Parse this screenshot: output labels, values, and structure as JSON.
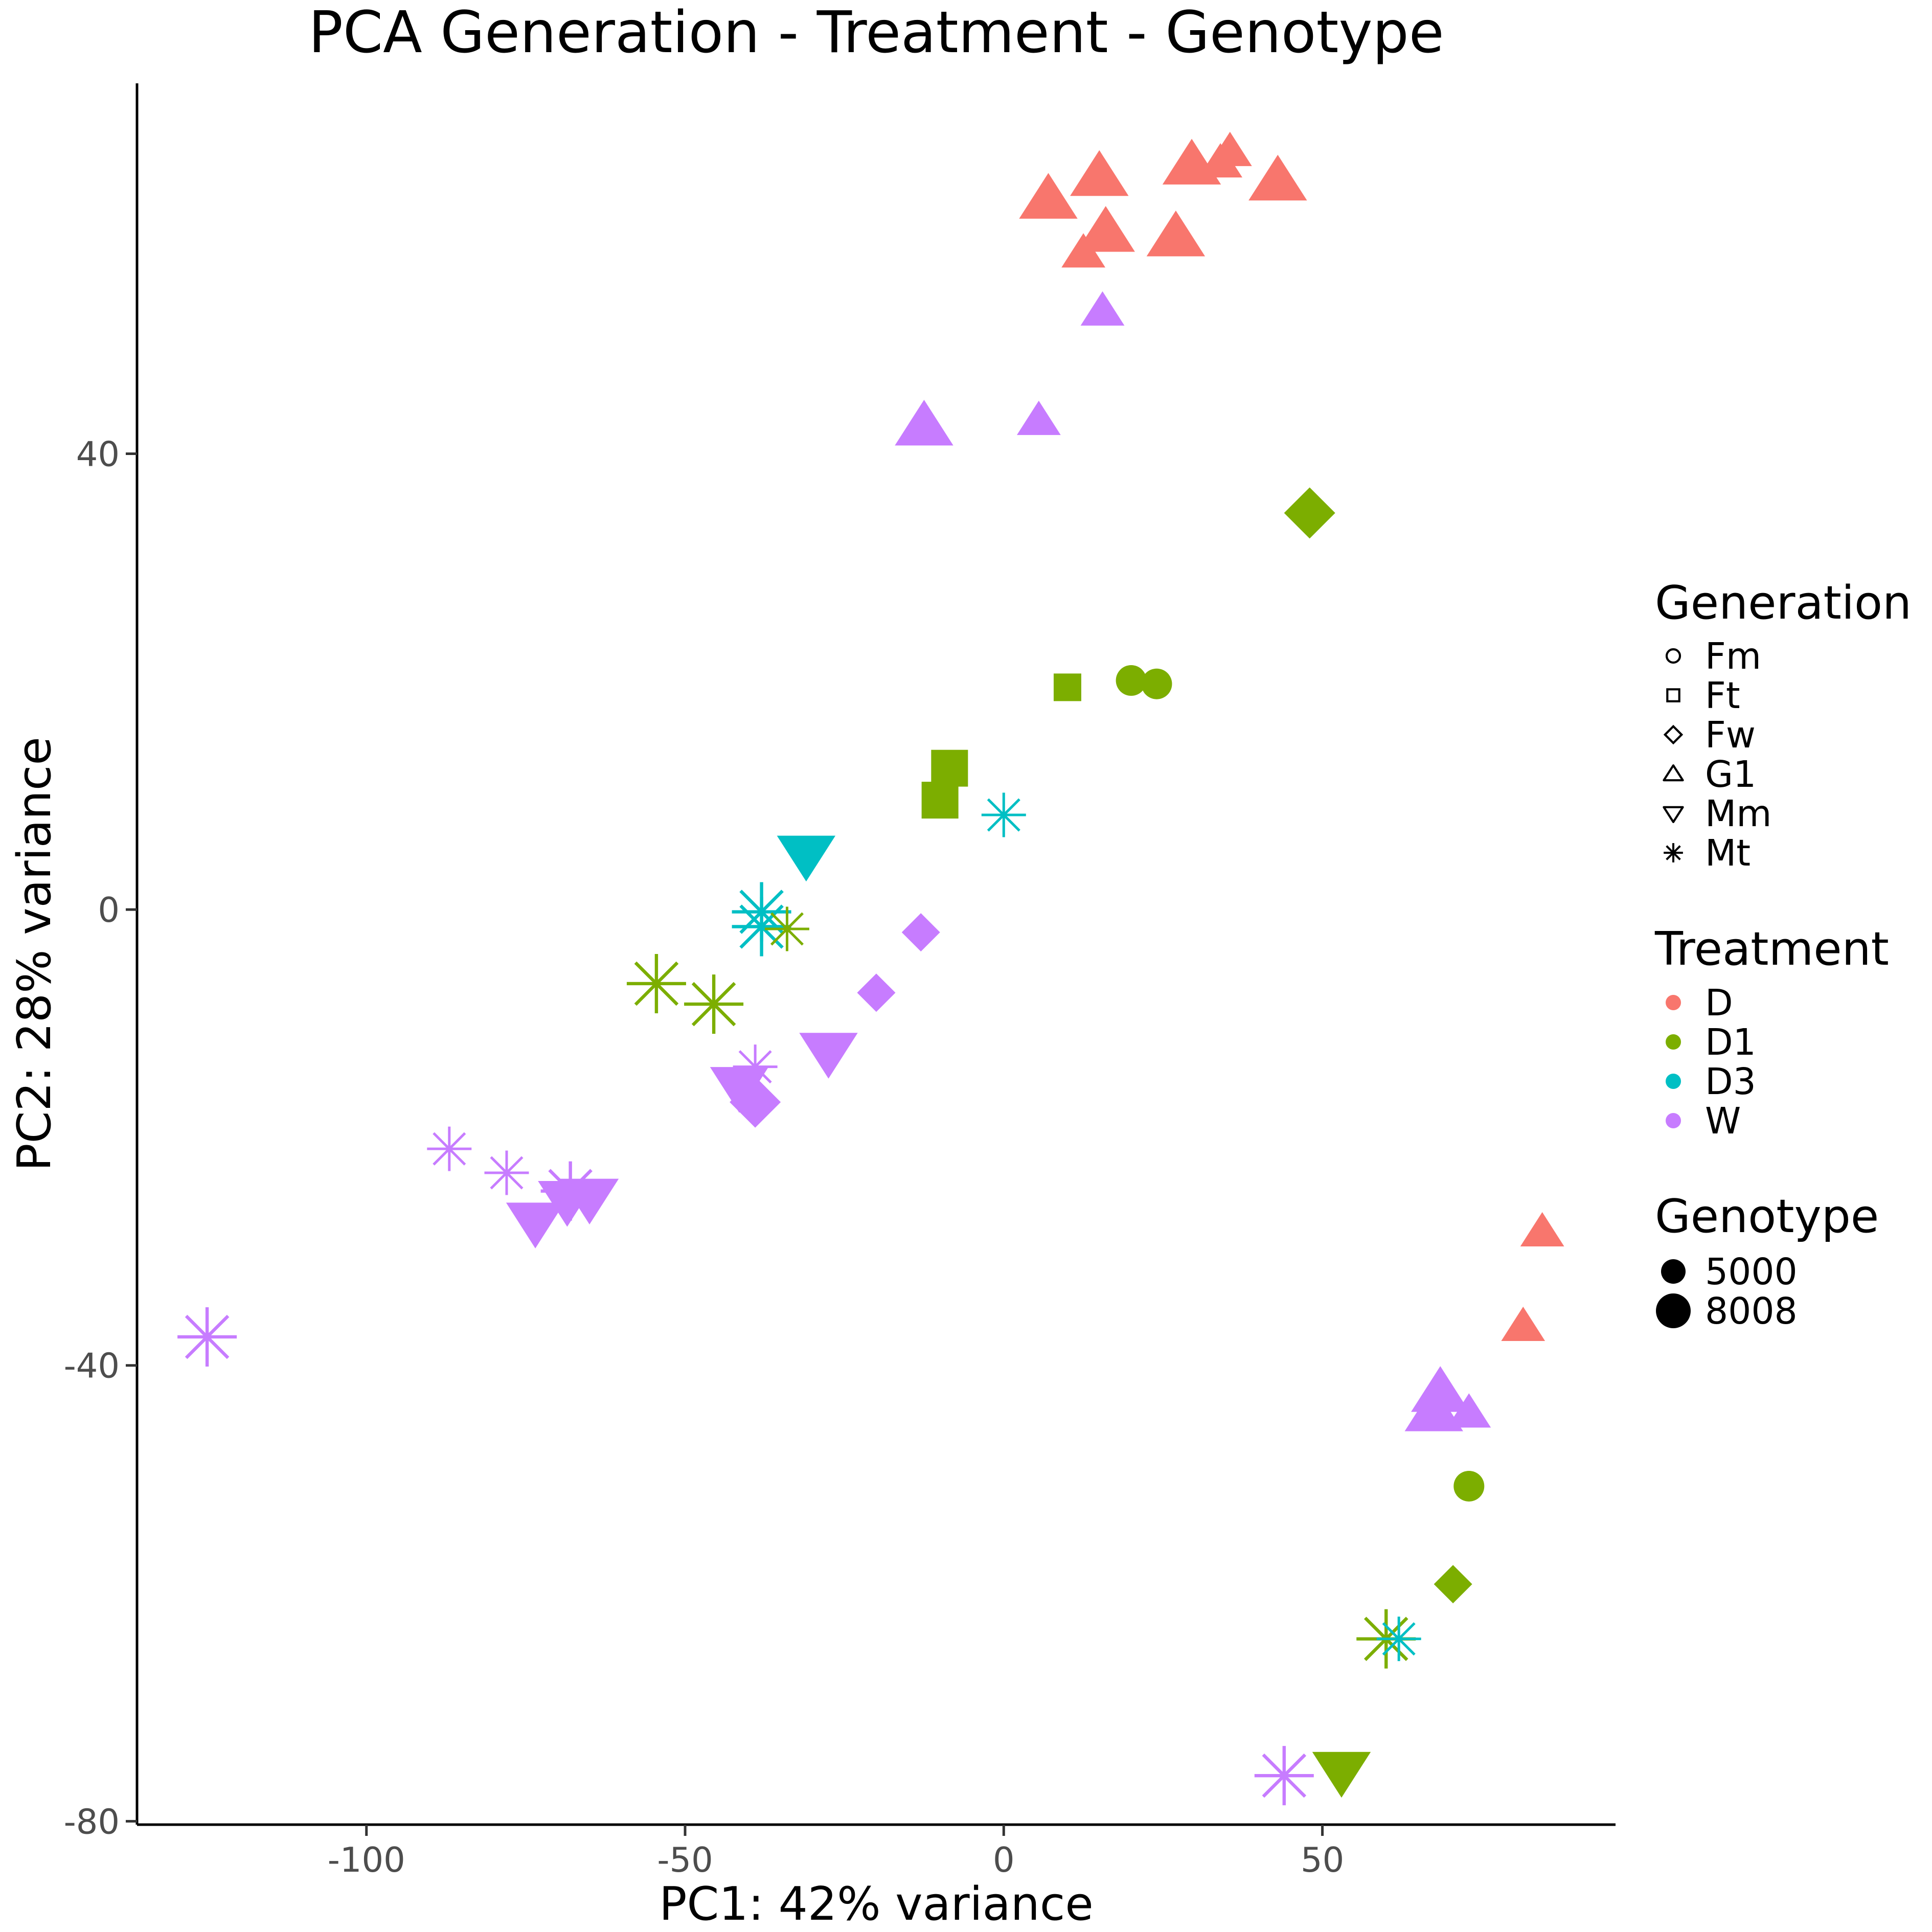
{
  "chart_data": {
    "type": "scatter",
    "title": "PCA Generation - Treatment - Genotype",
    "xlabel": "PC1: 42% variance",
    "ylabel": "PC2: 28% variance",
    "xlim": [
      -136,
      96
    ],
    "ylim": [
      -80.3,
      72.5
    ],
    "grid": false,
    "xticks": [
      -100,
      -50,
      0,
      50
    ],
    "yticks": [
      40,
      0,
      -40,
      -80
    ],
    "treatment_colors": {
      "D": "#F8766D",
      "D1": "#7CAE00",
      "D3": "#00BFC4",
      "W": "#C77CFF"
    },
    "legend": {
      "placement": "right",
      "generation": {
        "title": "Generation",
        "items": [
          "Fm",
          "Ft",
          "Fw",
          "G1",
          "Mm",
          "Mt"
        ]
      },
      "treatment": {
        "title": "Treatment",
        "items": [
          "D",
          "D1",
          "D3",
          "W"
        ]
      },
      "genotype": {
        "title": "Genotype",
        "items": [
          "5000",
          "8008"
        ]
      }
    },
    "points": [
      {
        "pc1": 7,
        "pc2": 62.3,
        "generation": "G1",
        "treatment": "D",
        "genotype": "8008"
      },
      {
        "pc1": 15,
        "pc2": 64.3,
        "generation": "G1",
        "treatment": "D",
        "genotype": "8008"
      },
      {
        "pc1": 29.5,
        "pc2": 65.3,
        "generation": "G1",
        "treatment": "D",
        "genotype": "8008"
      },
      {
        "pc1": 34,
        "pc2": 65.5,
        "generation": "G1",
        "treatment": "D",
        "genotype": "5000"
      },
      {
        "pc1": 35.5,
        "pc2": 66.5,
        "generation": "G1",
        "treatment": "D",
        "genotype": "5000"
      },
      {
        "pc1": 43,
        "pc2": 63.9,
        "generation": "G1",
        "treatment": "D",
        "genotype": "8008"
      },
      {
        "pc1": 16,
        "pc2": 59.4,
        "generation": "G1",
        "treatment": "D",
        "genotype": "8008"
      },
      {
        "pc1": 12.5,
        "pc2": 57.6,
        "generation": "G1",
        "treatment": "D",
        "genotype": "5000"
      },
      {
        "pc1": 27,
        "pc2": 59.0,
        "generation": "G1",
        "treatment": "D",
        "genotype": "8008"
      },
      {
        "pc1": 84.5,
        "pc2": -28.3,
        "generation": "G1",
        "treatment": "D",
        "genotype": "5000"
      },
      {
        "pc1": 81.5,
        "pc2": -36.6,
        "generation": "G1",
        "treatment": "D",
        "genotype": "5000"
      },
      {
        "pc1": 15.5,
        "pc2": 52.5,
        "generation": "G1",
        "treatment": "W",
        "genotype": "5000"
      },
      {
        "pc1": -12.5,
        "pc2": 42.4,
        "generation": "G1",
        "treatment": "W",
        "genotype": "8008"
      },
      {
        "pc1": 5.5,
        "pc2": 42.9,
        "generation": "G1",
        "treatment": "W",
        "genotype": "5000"
      },
      {
        "pc1": 68.5,
        "pc2": -42.4,
        "generation": "G1",
        "treatment": "W",
        "genotype": "8008"
      },
      {
        "pc1": 67.5,
        "pc2": -44.1,
        "generation": "G1",
        "treatment": "W",
        "genotype": "8008"
      },
      {
        "pc1": 73,
        "pc2": -44.2,
        "generation": "G1",
        "treatment": "W",
        "genotype": "5000"
      },
      {
        "pc1": 48,
        "pc2": 34.8,
        "generation": "Fw",
        "treatment": "D1",
        "genotype": "8008"
      },
      {
        "pc1": 70.5,
        "pc2": -59.2,
        "generation": "Fw",
        "treatment": "D1",
        "genotype": "5000"
      },
      {
        "pc1": -13,
        "pc2": -2.0,
        "generation": "Fw",
        "treatment": "W",
        "genotype": "5000"
      },
      {
        "pc1": -20,
        "pc2": -7.3,
        "generation": "Fw",
        "treatment": "W",
        "genotype": "5000"
      },
      {
        "pc1": -39,
        "pc2": -16.9,
        "generation": "Fw",
        "treatment": "W",
        "genotype": "8008"
      },
      {
        "pc1": 20,
        "pc2": 20.1,
        "generation": "Fm",
        "treatment": "D1",
        "genotype": "5000"
      },
      {
        "pc1": 24,
        "pc2": 19.8,
        "generation": "Fm",
        "treatment": "D1",
        "genotype": "5000"
      },
      {
        "pc1": 73,
        "pc2": -50.6,
        "generation": "Fm",
        "treatment": "D1",
        "genotype": "5000"
      },
      {
        "pc1": 10,
        "pc2": 19.5,
        "generation": "Ft",
        "treatment": "D1",
        "genotype": "5000"
      },
      {
        "pc1": -8.5,
        "pc2": 12.4,
        "generation": "Ft",
        "treatment": "D1",
        "genotype": "8008"
      },
      {
        "pc1": -10,
        "pc2": 9.6,
        "generation": "Ft",
        "treatment": "D1",
        "genotype": "8008"
      },
      {
        "pc1": -31,
        "pc2": 4.8,
        "generation": "Mm",
        "treatment": "D3",
        "genotype": "8008"
      },
      {
        "pc1": -27.5,
        "pc2": -12.5,
        "generation": "Mm",
        "treatment": "W",
        "genotype": "8008"
      },
      {
        "pc1": -41.5,
        "pc2": -15.5,
        "generation": "Mm",
        "treatment": "W",
        "genotype": "8008"
      },
      {
        "pc1": -73.5,
        "pc2": -27.4,
        "generation": "Mm",
        "treatment": "W",
        "genotype": "8008"
      },
      {
        "pc1": -68.5,
        "pc2": -25.5,
        "generation": "Mm",
        "treatment": "W",
        "genotype": "8008"
      },
      {
        "pc1": -65,
        "pc2": -25.3,
        "generation": "Mm",
        "treatment": "W",
        "genotype": "8008"
      },
      {
        "pc1": 53,
        "pc2": -75.6,
        "generation": "Mm",
        "treatment": "D1",
        "genotype": "8008"
      },
      {
        "pc1": 0,
        "pc2": 8.3,
        "generation": "Mt",
        "treatment": "D3",
        "genotype": "5000"
      },
      {
        "pc1": -38,
        "pc2": -0.2,
        "generation": "Mt",
        "treatment": "D3",
        "genotype": "8008"
      },
      {
        "pc1": -38,
        "pc2": -1.5,
        "generation": "Mt",
        "treatment": "D3",
        "genotype": "8008"
      },
      {
        "pc1": -34,
        "pc2": -1.7,
        "generation": "Mt",
        "treatment": "D1",
        "genotype": "5000"
      },
      {
        "pc1": -54.5,
        "pc2": -6.5,
        "generation": "Mt",
        "treatment": "D1",
        "genotype": "8008"
      },
      {
        "pc1": -45.5,
        "pc2": -8.3,
        "generation": "Mt",
        "treatment": "D1",
        "genotype": "8008"
      },
      {
        "pc1": -39,
        "pc2": -13.8,
        "generation": "Mt",
        "treatment": "W",
        "genotype": "5000"
      },
      {
        "pc1": -87,
        "pc2": -21.0,
        "generation": "Mt",
        "treatment": "W",
        "genotype": "5000"
      },
      {
        "pc1": -78,
        "pc2": -23.1,
        "generation": "Mt",
        "treatment": "W",
        "genotype": "5000"
      },
      {
        "pc1": -68,
        "pc2": -24.7,
        "generation": "Mt",
        "treatment": "W",
        "genotype": "8008"
      },
      {
        "pc1": -125,
        "pc2": -37.5,
        "generation": "Mt",
        "treatment": "W",
        "genotype": "8008"
      },
      {
        "pc1": 60,
        "pc2": -64.0,
        "generation": "Mt",
        "treatment": "D1",
        "genotype": "8008"
      },
      {
        "pc1": 62,
        "pc2": -64.0,
        "generation": "Mt",
        "treatment": "D3",
        "genotype": "5000"
      },
      {
        "pc1": 44,
        "pc2": -76.0,
        "generation": "Mt",
        "treatment": "W",
        "genotype": "8008"
      }
    ]
  }
}
